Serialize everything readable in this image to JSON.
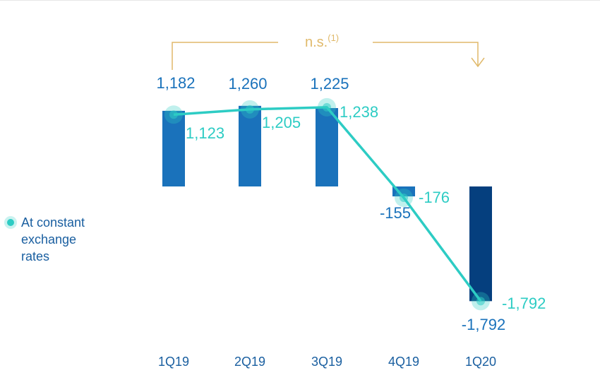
{
  "colors": {
    "bar": "#1a72bb",
    "bar_last": "#053f7e",
    "line": "#2dccc4",
    "current_label": "#1a72bb",
    "constant_label": "#2dccc4",
    "annotation": "#e0b96a",
    "axis_label": "#1a5fa0"
  },
  "legend": {
    "label": "At constant exchange rates"
  },
  "annotation": {
    "text": "n.s.",
    "superscript": "(1)"
  },
  "chart_data": {
    "type": "bar",
    "categories": [
      "1Q19",
      "2Q19",
      "3Q19",
      "4Q19",
      "1Q20"
    ],
    "series": [
      {
        "values": [
          1182,
          1260,
          1225,
          -155,
          -1792
        ],
        "value_labels": [
          "1,182",
          "1,260",
          "1,225",
          "-155",
          "-1,792"
        ]
      },
      {
        "name": "At constant exchange rates",
        "type": "line",
        "values": [
          1123,
          1205,
          1238,
          -176,
          -1792
        ],
        "value_labels": [
          "1,123",
          "1,205",
          "1,238",
          "-176",
          "-1,792"
        ]
      }
    ],
    "ylim": [
      -1900,
      1400
    ],
    "grid": false,
    "legend_position": "left"
  }
}
